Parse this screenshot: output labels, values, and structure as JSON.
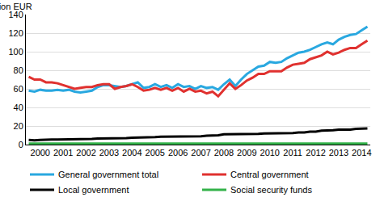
{
  "chart_data": {
    "type": "line",
    "ylabel": "Billion EUR",
    "categories": [
      null,
      null,
      "2000",
      null,
      null,
      null,
      "2001",
      null,
      null,
      null,
      "2002",
      null,
      null,
      null,
      "2003",
      null,
      null,
      null,
      "2004",
      null,
      null,
      null,
      "2005",
      null,
      null,
      null,
      "2006",
      null,
      null,
      null,
      "2007",
      null,
      null,
      null,
      "2008",
      null,
      null,
      null,
      "2009",
      null,
      null,
      null,
      "2010",
      null,
      null,
      null,
      "2011",
      null,
      null,
      null,
      "2012",
      null,
      null,
      null,
      "2013",
      null,
      null,
      null,
      "2014",
      null
    ],
    "series": [
      {
        "name": "General government total",
        "color": "#29a8e0",
        "values": [
          58,
          57,
          59,
          58,
          58,
          59,
          58,
          59,
          57,
          56,
          57,
          58,
          62,
          64,
          64,
          63,
          62,
          63,
          65,
          67,
          61,
          62,
          65,
          62,
          64,
          61,
          65,
          62,
          63,
          60,
          63,
          61,
          62,
          59,
          65,
          70,
          63,
          70,
          76,
          80,
          84,
          85,
          89,
          88,
          89,
          93,
          96,
          99,
          100,
          102,
          105,
          108,
          110,
          108,
          113,
          116,
          118,
          119,
          123,
          127
        ]
      },
      {
        "name": "Central government",
        "color": "#e0312f",
        "values": [
          73,
          70,
          70,
          67,
          67,
          66,
          64,
          62,
          60,
          61,
          62,
          62,
          64,
          65,
          65,
          60,
          62,
          63,
          65,
          62,
          58,
          59,
          61,
          59,
          61,
          58,
          61,
          57,
          60,
          57,
          58,
          55,
          57,
          52,
          59,
          66,
          60,
          64,
          69,
          72,
          76,
          76,
          79,
          79,
          79,
          83,
          86,
          87,
          88,
          92,
          94,
          96,
          100,
          97,
          99,
          102,
          104,
          104,
          108,
          112
        ]
      },
      {
        "name": "Local government",
        "color": "#000000",
        "values": [
          5,
          4.5,
          5,
          5.5,
          5.5,
          5.5,
          5.5,
          5.5,
          5.5,
          5.5,
          6,
          6,
          6.5,
          6.5,
          6.5,
          7,
          7,
          7,
          7.5,
          7.5,
          8,
          8,
          8,
          8.5,
          8.5,
          8.5,
          9,
          9,
          9,
          9,
          9,
          9.5,
          9.5,
          10,
          11,
          11,
          11,
          11.5,
          11.5,
          11.5,
          11.5,
          12,
          12,
          12,
          12,
          12.5,
          12.5,
          13,
          13,
          14,
          14,
          15,
          15,
          15.5,
          16,
          16,
          16,
          17,
          17,
          17.5
        ]
      },
      {
        "name": "Social security funds",
        "color": "#33b24a",
        "values": [
          1,
          1,
          1,
          1,
          1,
          1,
          1,
          1,
          1,
          1,
          1,
          1,
          1,
          1,
          1,
          1,
          1,
          1,
          1,
          1,
          1,
          1,
          1,
          1,
          1,
          1,
          1,
          1,
          1,
          1,
          1,
          1,
          1,
          1,
          1,
          1,
          1,
          1,
          1,
          1,
          1,
          1,
          1,
          1,
          1,
          1,
          1,
          1,
          1,
          1,
          1,
          1,
          1,
          1,
          1,
          1,
          1,
          1,
          1,
          1
        ]
      }
    ],
    "ylim": [
      0,
      140
    ],
    "yticks": [
      0,
      20,
      40,
      60,
      80,
      100,
      120,
      140
    ],
    "grid": true,
    "legend": "bottom"
  }
}
